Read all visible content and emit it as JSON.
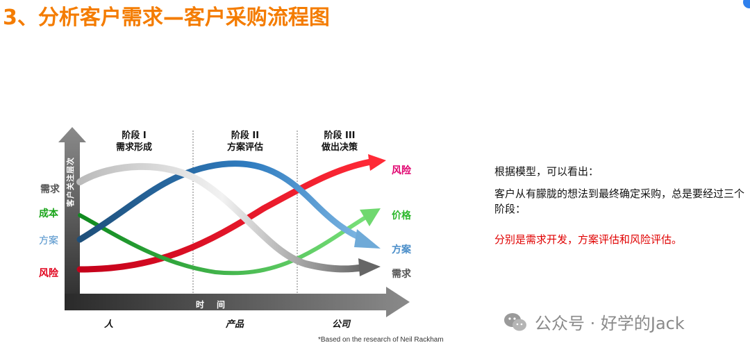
{
  "title": "3、分析客户需求—客户采购流程图",
  "phases": [
    {
      "line1": "阶段 I",
      "line2": "需求形成"
    },
    {
      "line1": "阶段 II",
      "line2": "方案评估"
    },
    {
      "line1": "阶段 III",
      "line2": "做出决策"
    }
  ],
  "left_labels": {
    "need": "需求",
    "cost": "成本",
    "solution": "方案",
    "risk": "风险"
  },
  "right_labels": {
    "risk": "风险",
    "price": "价格",
    "solution": "方案",
    "need": "需求"
  },
  "y_axis_label": "客户关注层次",
  "x_axis_label": "时间",
  "bottom_labels": [
    "人",
    "产品",
    "公司"
  ],
  "footnote": "*Based on the research of Neil Rackham",
  "side": {
    "line1": "根据模型，可以看出：",
    "line2": "客户从有朦胧的想法到最终确定采购，总是要经过三个阶段：",
    "line3": "分别是需求开发，方案评估和风险评估。"
  },
  "watermark": "公众号 · 好学的Jack",
  "colors": {
    "title": "#f47c00",
    "risk": "#e0001b",
    "cost": "#1aa51a",
    "solution": "#4a8ec9",
    "need": "#555555",
    "highlight_text": "#e00000",
    "price": "#2db82d"
  },
  "icons": {
    "watermark": "wechat-icon"
  }
}
